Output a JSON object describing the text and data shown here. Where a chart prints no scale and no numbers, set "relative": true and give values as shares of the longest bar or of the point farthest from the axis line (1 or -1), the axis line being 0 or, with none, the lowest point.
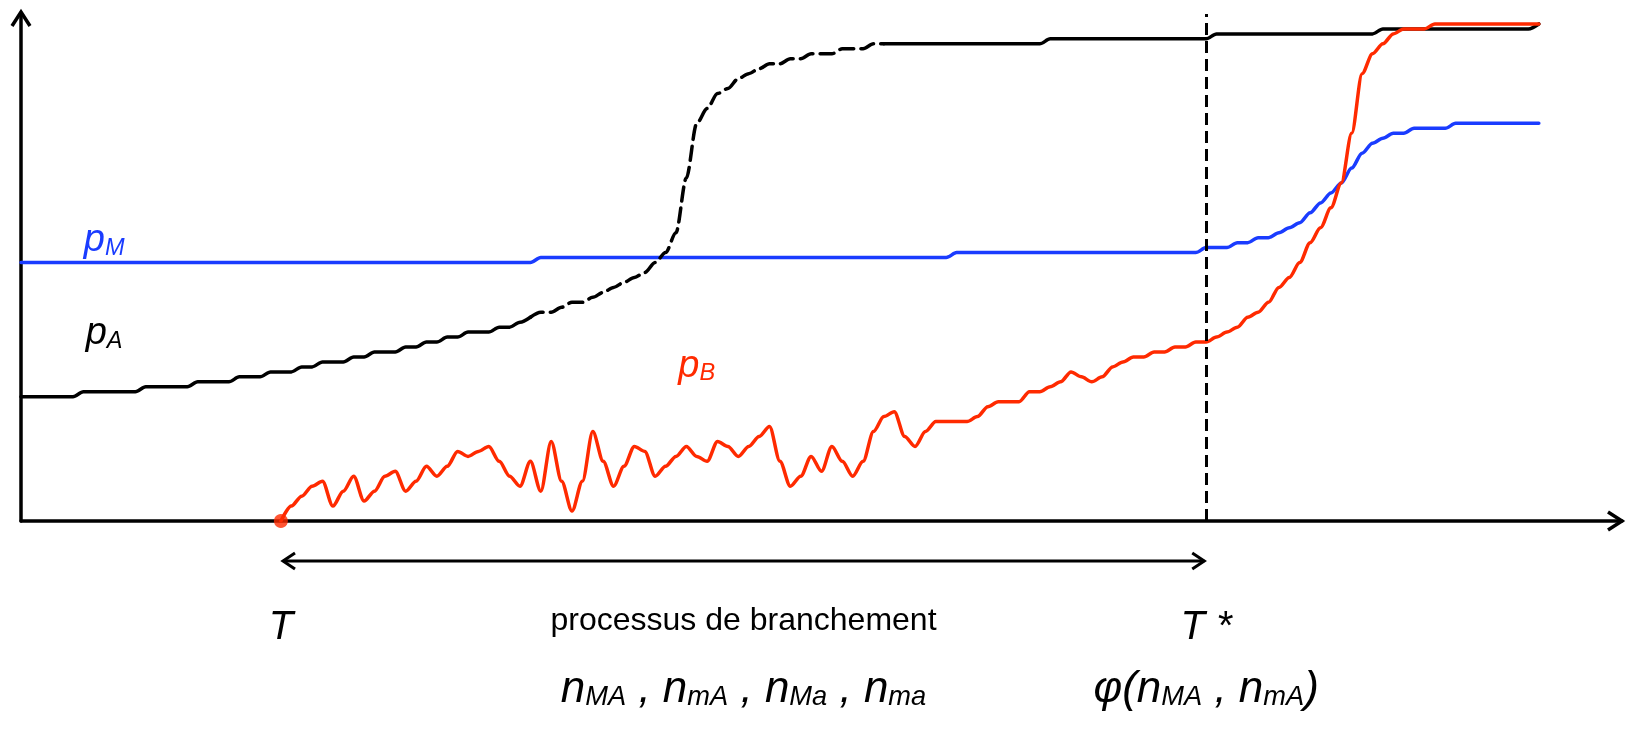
{
  "chart_data": {
    "type": "line",
    "relative": true,
    "tick_labels": "x",
    "grid": false,
    "legend": false,
    "marker": "none",
    "categories": [
      null,
      null,
      null,
      null,
      null,
      null,
      null,
      null,
      null,
      null,
      null,
      null,
      null,
      null,
      null,
      null,
      null,
      null,
      null,
      null,
      null,
      null,
      null,
      null,
      null,
      "T",
      null,
      null,
      null,
      null,
      null,
      null,
      null,
      null,
      null,
      null,
      null,
      null,
      null,
      null,
      null,
      null,
      null,
      null,
      null,
      null,
      null,
      null,
      null,
      null,
      null,
      null,
      null,
      null,
      null,
      null,
      null,
      null,
      null,
      null,
      null,
      null,
      null,
      null,
      null,
      null,
      null,
      null,
      null,
      null,
      null,
      null,
      null,
      null,
      null,
      null,
      null,
      null,
      null,
      null,
      null,
      null,
      null,
      null,
      null,
      null,
      null,
      null,
      null,
      null,
      null,
      null,
      null,
      null,
      null,
      null,
      null,
      null,
      null,
      null,
      null,
      null,
      null,
      null,
      null,
      null,
      null,
      null,
      null,
      null,
      null,
      null,
      null,
      null,
      "T *",
      null,
      null,
      null,
      null,
      null,
      null,
      null,
      null,
      null,
      null,
      null,
      null,
      null,
      null,
      null,
      null,
      null,
      null,
      null,
      null,
      null,
      null,
      null,
      null,
      null,
      null,
      null,
      null,
      null,
      null,
      null,
      null
    ],
    "series": [
      {
        "name": "p$_{M}$",
        "color": "#1a3cff",
        "values": [
          0.52,
          0.52,
          0.52,
          0.52,
          0.52,
          0.52,
          0.52,
          0.52,
          0.52,
          0.52,
          0.52,
          0.52,
          0.52,
          0.52,
          0.52,
          0.52,
          0.52,
          0.52,
          0.52,
          0.52,
          0.52,
          0.52,
          0.52,
          0.52,
          0.52,
          0.52,
          0.52,
          0.52,
          0.52,
          0.52,
          0.52,
          0.52,
          0.52,
          0.52,
          0.52,
          0.52,
          0.52,
          0.52,
          0.52,
          0.52,
          0.52,
          0.52,
          0.52,
          0.52,
          0.52,
          0.52,
          0.52,
          0.52,
          0.52,
          0.52,
          0.53,
          0.53,
          0.53,
          0.53,
          0.53,
          0.53,
          0.53,
          0.53,
          0.53,
          0.53,
          0.53,
          0.53,
          0.53,
          0.53,
          0.53,
          0.53,
          0.53,
          0.53,
          0.53,
          0.53,
          0.53,
          0.53,
          0.53,
          0.53,
          0.53,
          0.53,
          0.53,
          0.53,
          0.53,
          0.53,
          0.53,
          0.53,
          0.53,
          0.53,
          0.53,
          0.53,
          0.53,
          0.53,
          0.53,
          0.53,
          0.54,
          0.54,
          0.54,
          0.54,
          0.54,
          0.54,
          0.54,
          0.54,
          0.54,
          0.54,
          0.54,
          0.54,
          0.54,
          0.54,
          0.54,
          0.54,
          0.54,
          0.54,
          0.54,
          0.54,
          0.54,
          0.54,
          0.54,
          0.54,
          0.55,
          0.55,
          0.55,
          0.56,
          0.56,
          0.57,
          0.57,
          0.58,
          0.59,
          0.6,
          0.62,
          0.64,
          0.66,
          0.68,
          0.71,
          0.74,
          0.76,
          0.77,
          0.78,
          0.78,
          0.79,
          0.79,
          0.79,
          0.79,
          0.8,
          0.8,
          0.8,
          0.8,
          0.8,
          0.8,
          0.8,
          0.8,
          0.8
        ]
      },
      {
        "name": "p$_{A}$",
        "color": "#000000",
        "values": [
          0.25,
          0.25,
          0.25,
          0.25,
          0.25,
          0.25,
          0.26,
          0.26,
          0.26,
          0.26,
          0.26,
          0.26,
          0.27,
          0.27,
          0.27,
          0.27,
          0.27,
          0.28,
          0.28,
          0.28,
          0.28,
          0.29,
          0.29,
          0.29,
          0.3,
          0.3,
          0.3,
          0.31,
          0.31,
          0.32,
          0.32,
          0.32,
          0.33,
          0.33,
          0.34,
          0.34,
          0.34,
          0.35,
          0.35,
          0.36,
          0.36,
          0.37,
          0.37,
          0.38,
          0.38,
          0.38,
          0.39,
          0.39,
          0.4,
          0.41,
          null,
          null,
          null,
          null,
          null,
          null,
          null,
          null,
          null,
          null,
          null,
          null,
          null,
          null,
          null,
          null,
          null,
          null,
          null,
          null,
          null,
          null,
          null,
          null,
          null,
          null,
          null,
          null,
          null,
          null,
          null,
          null,
          null,
          0.96,
          0.96,
          0.96,
          0.96,
          0.96,
          0.96,
          0.96,
          0.96,
          0.96,
          0.96,
          0.96,
          0.96,
          0.96,
          0.96,
          0.96,
          0.96,
          0.97,
          0.97,
          0.97,
          0.97,
          0.97,
          0.97,
          0.97,
          0.97,
          0.97,
          0.97,
          0.97,
          0.97,
          0.97,
          0.97,
          0.97,
          0.97,
          0.98,
          0.98,
          0.98,
          0.98,
          0.98,
          0.98,
          0.98,
          0.98,
          0.98,
          0.98,
          0.98,
          0.98,
          0.98,
          0.98,
          0.98,
          0.98,
          0.99,
          0.99,
          0.99,
          0.99,
          0.99,
          0.99,
          0.99,
          0.99,
          0.99,
          0.99,
          0.99,
          0.99,
          0.99,
          0.99,
          0.99,
          1.0
        ]
      },
      {
        "color": "#000000",
        "line_style": "dashed",
        "values": [
          null,
          null,
          null,
          null,
          null,
          null,
          null,
          null,
          null,
          null,
          null,
          null,
          null,
          null,
          null,
          null,
          null,
          null,
          null,
          null,
          null,
          null,
          null,
          null,
          null,
          null,
          null,
          null,
          null,
          null,
          null,
          null,
          null,
          null,
          null,
          null,
          null,
          null,
          null,
          null,
          null,
          null,
          null,
          null,
          null,
          null,
          null,
          null,
          null,
          0.41,
          0.42,
          0.42,
          0.43,
          0.44,
          0.44,
          0.45,
          0.46,
          0.47,
          0.48,
          0.49,
          0.5,
          0.52,
          0.54,
          0.58,
          0.69,
          0.8,
          0.83,
          0.86,
          0.87,
          0.89,
          0.9,
          0.91,
          0.92,
          0.92,
          0.93,
          0.93,
          0.94,
          0.94,
          0.94,
          0.95,
          0.95,
          0.95,
          0.96,
          0.96,
          null,
          null,
          null,
          null,
          null,
          null,
          null,
          null,
          null,
          null,
          null,
          null,
          null,
          null,
          null,
          null,
          null,
          null,
          null,
          null,
          null,
          null,
          null,
          null,
          null,
          null,
          null,
          null,
          null,
          null,
          null,
          null,
          null,
          null,
          null,
          null,
          null,
          null,
          null,
          null,
          null,
          null,
          null,
          null,
          null,
          null,
          null,
          null,
          null,
          null,
          null,
          null,
          null,
          null,
          null,
          null,
          null,
          null,
          null,
          null,
          null,
          null,
          null
        ]
      },
      {
        "name": "p$_{B}$",
        "color": "#ff2a00",
        "values": [
          null,
          null,
          null,
          null,
          null,
          null,
          null,
          null,
          null,
          null,
          null,
          null,
          null,
          null,
          null,
          null,
          null,
          null,
          null,
          null,
          null,
          null,
          null,
          null,
          null,
          0,
          0.03,
          0.05,
          0.07,
          0.08,
          0.03,
          0.06,
          0.09,
          0.04,
          0.06,
          0.09,
          0.1,
          0.06,
          0.08,
          0.11,
          0.09,
          0.11,
          0.14,
          0.13,
          0.14,
          0.15,
          0.12,
          0.09,
          0.07,
          0.12,
          0.06,
          0.16,
          0.08,
          0.02,
          0.08,
          0.18,
          0.12,
          0.07,
          0.11,
          0.15,
          0.14,
          0.09,
          0.11,
          0.13,
          0.15,
          0.13,
          0.12,
          0.16,
          0.15,
          0.13,
          0.15,
          0.17,
          0.19,
          0.12,
          0.07,
          0.09,
          0.13,
          0.1,
          0.15,
          0.12,
          0.09,
          0.12,
          0.18,
          0.21,
          0.22,
          0.17,
          0.15,
          0.18,
          0.2,
          0.2,
          0.2,
          0.2,
          0.21,
          0.23,
          0.24,
          0.24,
          0.24,
          0.26,
          0.26,
          0.27,
          0.28,
          0.3,
          0.29,
          0.28,
          0.29,
          0.31,
          0.32,
          0.33,
          0.33,
          0.34,
          0.34,
          0.35,
          0.35,
          0.36,
          0.36,
          0.37,
          0.38,
          0.39,
          0.41,
          0.42,
          0.44,
          0.47,
          0.49,
          0.52,
          0.56,
          0.59,
          0.63,
          0.68,
          0.78,
          0.9,
          0.94,
          0.96,
          0.98,
          0.99,
          0.99,
          0.99,
          1.0,
          1.0,
          1.0,
          1.0,
          1.0,
          1.0,
          1.0,
          1.0,
          1.0,
          1.0,
          1.0
        ]
      },
      {
        "type": "scatter",
        "marker": "circle",
        "color": "#ff2a00",
        "x": [
          "T"
        ],
        "values": [
          0
        ]
      }
    ],
    "ref_lines": [
      {
        "axis": "x",
        "value": "T *",
        "color": "#000000",
        "line_style": "dashed"
      }
    ],
    "annotations": [
      "processus de branchement",
      "n$_{MA}$ , n$_{mA}$ , n$_{Ma}$ , n$_{ma}$",
      "φ(n$_{MA}$ , n$_{mA}$)"
    ]
  }
}
